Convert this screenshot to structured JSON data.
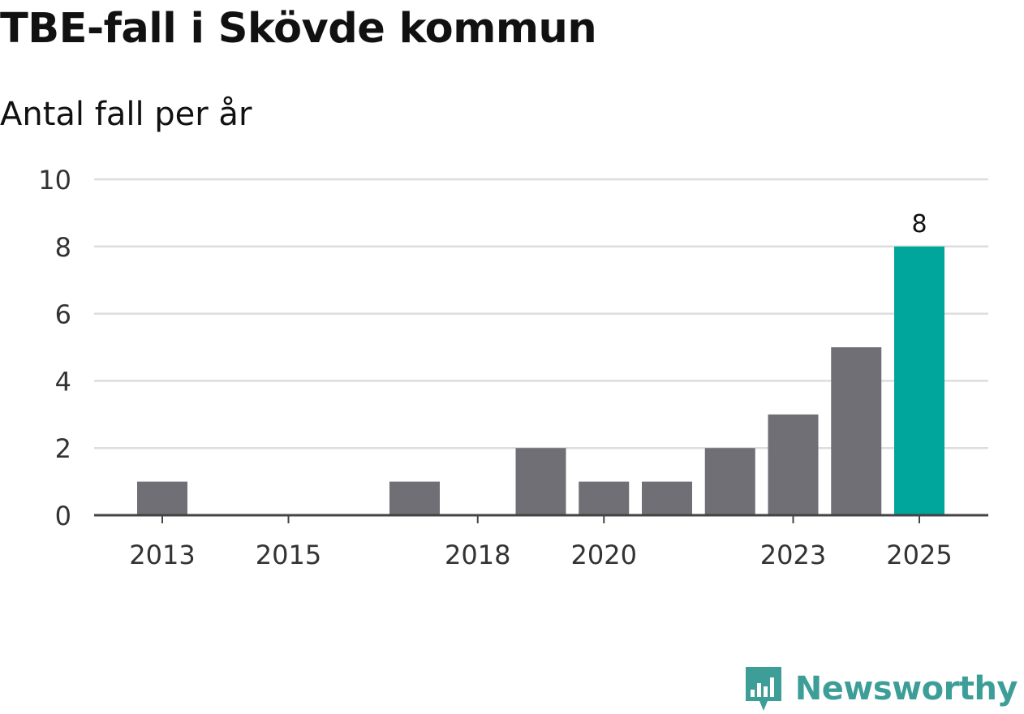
{
  "chart_data": {
    "type": "bar",
    "title": "TBE-fall i Skövde kommun",
    "subtitle": "Antal fall per år",
    "categories": [
      "2013",
      "2014",
      "2015",
      "2016",
      "2017",
      "2018",
      "2019",
      "2020",
      "2021",
      "2022",
      "2023",
      "2024",
      "2025"
    ],
    "values": [
      1,
      0,
      0,
      0,
      1,
      0,
      2,
      1,
      1,
      2,
      3,
      5,
      8
    ],
    "x_tick_labels": [
      "2013",
      "2015",
      "2018",
      "2020",
      "2023",
      "2025"
    ],
    "y_tick_labels": [
      "0",
      "2",
      "4",
      "6",
      "8",
      "10"
    ],
    "ylim": [
      0,
      10
    ],
    "grid": true,
    "highlight_category": "2025",
    "highlight_value_label": "8",
    "colors": {
      "bar": "#706f75",
      "highlight": "#00a59c",
      "grid": "#dddddd",
      "axis": "#444444"
    }
  },
  "brand": {
    "name": "Newsworthy",
    "logo_icon": "newsworthy-logo-icon",
    "color": "#3d9e98"
  }
}
